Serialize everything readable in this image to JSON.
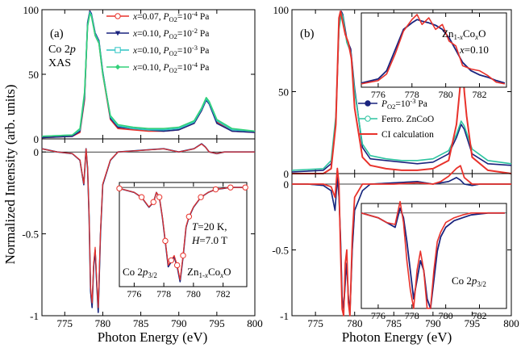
{
  "figure": {
    "ylabel": "Normalized Intensity (arb. units)",
    "xlabel": "Photon Energy (eV)"
  },
  "chart_data": [
    {
      "panel": "a",
      "type": "line",
      "label": "(a)",
      "annotation": [
        "Co 2p",
        "XAS"
      ],
      "x_ticks": [
        775,
        780,
        785,
        790,
        795,
        800
      ],
      "xlim": [
        772,
        800
      ],
      "xas": {
        "ylim": [
          0,
          100
        ],
        "y_ticks": [
          0,
          50,
          100
        ],
        "series": [
          {
            "name": "x=0.07, PO2=10^-4 Pa",
            "legend": [
              "x",
              "=0.07, ",
              "P",
              "O2",
              "=10",
              "-4",
              " Pa"
            ],
            "color": "#e8322b",
            "marker": "open-circle",
            "x": [
              772,
              776,
              777,
              777.6,
              778.0,
              778.3,
              778.5,
              779.0,
              779.5,
              780,
              781,
              782,
              784,
              786,
              788,
              790,
              792,
              793,
              793.6,
              794,
              795,
              797,
              800
            ],
            "y": [
              1,
              2,
              5,
              30,
              88,
              99,
              96,
              80,
              74,
              50,
              15,
              8,
              7,
              6,
              6,
              7,
              12,
              22,
              31,
              28,
              13,
              6,
              5
            ]
          },
          {
            "name": "x=0.10, PO2=10^-2 Pa",
            "legend": [
              "x",
              "=0.10, ",
              "P",
              "O2",
              "=10",
              "-2",
              " Pa"
            ],
            "color": "#1a237e",
            "marker": "filled-triangle-down",
            "x": [
              772,
              776,
              777,
              777.6,
              778.0,
              778.3,
              778.5,
              779.0,
              779.5,
              780,
              781,
              782,
              784,
              786,
              788,
              790,
              792,
              793,
              793.6,
              794,
              795,
              797,
              800
            ],
            "y": [
              1,
              2,
              6,
              32,
              90,
              99,
              97,
              82,
              76,
              52,
              16,
              9,
              8,
              7,
              6,
              7,
              12,
              22,
              30,
              27,
              12,
              6,
              5
            ]
          },
          {
            "name": "x=0.10, PO2=10^-3 Pa",
            "legend": [
              "x",
              "=0.10, ",
              "P",
              "O2",
              "=10",
              "-3",
              " Pa"
            ],
            "color": "#2ec4c4",
            "marker": "open-square",
            "x": [
              772,
              776,
              777,
              777.6,
              778.0,
              778.3,
              778.5,
              779.0,
              779.5,
              780,
              781,
              782,
              784,
              786,
              788,
              790,
              792,
              793,
              793.6,
              794,
              795,
              797,
              800
            ],
            "y": [
              2,
              3,
              7,
              34,
              88,
              98,
              96,
              81,
              75,
              51,
              17,
              10,
              8,
              7,
              7,
              8,
              13,
              23,
              31,
              28,
              14,
              7,
              6
            ]
          },
          {
            "name": "x=0.10, PO2=10^-4 Pa",
            "legend": [
              "x",
              "=0.10, ",
              "P",
              "O2",
              "=10",
              "-4",
              " Pa"
            ],
            "color": "#33d17a",
            "marker": "filled-diamond",
            "x": [
              772,
              776,
              777,
              777.6,
              778.0,
              778.3,
              778.5,
              779.0,
              779.5,
              780,
              781,
              782,
              784,
              786,
              788,
              790,
              792,
              793,
              793.6,
              794,
              795,
              797,
              800
            ],
            "y": [
              2,
              3,
              8,
              36,
              87,
              97,
              95,
              80,
              74,
              50,
              18,
              11,
              9,
              8,
              8,
              9,
              14,
              24,
              32,
              29,
              15,
              8,
              6
            ]
          }
        ]
      },
      "xmcd": {
        "ylim": [
          -1.0,
          0.08
        ],
        "y_ticks": [
          0,
          -0.5,
          -1.0
        ],
        "x": [
          772,
          774,
          776,
          777,
          777.5,
          777.8,
          778.0,
          778.2,
          778.4,
          778.6,
          778.8,
          779.0,
          779.2,
          779.4,
          779.7,
          780,
          781,
          782,
          785,
          788,
          790,
          791,
          792,
          793,
          793.5,
          794,
          795,
          796,
          798,
          800
        ],
        "y": [
          0.02,
          0.0,
          -0.01,
          -0.05,
          -0.2,
          0.02,
          -0.1,
          -0.4,
          -0.85,
          -0.95,
          -0.7,
          -0.6,
          -0.8,
          -0.98,
          -0.5,
          -0.2,
          -0.05,
          0,
          0.01,
          0.02,
          0.0,
          0.01,
          0.02,
          0.05,
          0.03,
          0.0,
          -0.01,
          0.0,
          0.0,
          0.0
        ],
        "inset": {
          "xlim": [
            775,
            783.6
          ],
          "x_ticks": [
            776,
            778,
            780,
            782
          ],
          "ylim": [
            -1.0,
            0.05
          ],
          "texts": [
            "T=20 K,",
            "H=7.0 T",
            "Co 2p3/2",
            "Zn1-xCoxO"
          ],
          "x": [
            775,
            776,
            776.5,
            777,
            777.3,
            777.5,
            777.7,
            777.9,
            778.1,
            778.3,
            778.5,
            778.7,
            778.9,
            779.1,
            779.3,
            779.5,
            779.7,
            780,
            780.5,
            781,
            781.5,
            782,
            782.5,
            783,
            783.5
          ],
          "y": [
            -0.01,
            -0.05,
            -0.1,
            -0.2,
            -0.15,
            -0.05,
            -0.1,
            -0.3,
            -0.55,
            -0.8,
            -0.75,
            -0.7,
            -0.8,
            -0.95,
            -0.7,
            -0.4,
            -0.3,
            -0.2,
            -0.1,
            -0.05,
            -0.02,
            -0.01,
            0,
            0,
            0
          ]
        }
      }
    },
    {
      "panel": "b",
      "type": "line",
      "label": "(b)",
      "x_ticks": [
        775,
        780,
        785,
        790,
        795,
        800
      ],
      "xlim": [
        772,
        800
      ],
      "xas": {
        "ylim": [
          0,
          100
        ],
        "y_ticks": [
          0,
          50,
          100
        ],
        "series": [
          {
            "name": "PO2=10^-3 Pa",
            "legend": [
              "P",
              "O2",
              "=10",
              "-3",
              " Pa"
            ],
            "color": "#1a237e",
            "marker": "filled-circle",
            "x": [
              772,
              776,
              777,
              777.6,
              778.0,
              778.3,
              778.5,
              779.0,
              779.5,
              780,
              781,
              782,
              784,
              786,
              788,
              790,
              792,
              793,
              793.6,
              794,
              795,
              797,
              800
            ],
            "y": [
              1,
              2,
              6,
              32,
              90,
              99,
              97,
              82,
              76,
              52,
              16,
              9,
              8,
              7,
              6,
              7,
              12,
              22,
              30,
              27,
              12,
              6,
              5
            ]
          },
          {
            "name": "Ferro. ZnCoO",
            "legend": [
              "Ferro. ZnCoO"
            ],
            "color": "#2ec4a0",
            "marker": "open-circle",
            "x": [
              772,
              776,
              777,
              777.6,
              778.0,
              778.3,
              778.5,
              779.0,
              779.5,
              780,
              781,
              782,
              784,
              786,
              788,
              790,
              792,
              793,
              793.6,
              794,
              795,
              797,
              800
            ],
            "y": [
              2,
              3,
              8,
              35,
              88,
              98,
              96,
              80,
              74,
              50,
              18,
              11,
              9,
              8,
              8,
              9,
              14,
              24,
              32,
              29,
              15,
              8,
              6
            ]
          },
          {
            "name": "CI calculation",
            "legend": [
              "CI calculation"
            ],
            "color": "#e8322b",
            "marker": "line",
            "x": [
              772,
              776,
              777,
              777.6,
              778.0,
              778.2,
              778.5,
              778.8,
              779.2,
              779.6,
              780,
              781,
              782,
              784,
              786,
              788,
              790,
              792,
              793,
              793.5,
              793.8,
              794,
              794.3,
              795,
              797,
              800
            ],
            "y": [
              0,
              0,
              3,
              30,
              95,
              99,
              92,
              85,
              80,
              70,
              40,
              10,
              5,
              3,
              2,
              2,
              3,
              8,
              30,
              55,
              65,
              50,
              35,
              10,
              2,
              0
            ]
          }
        ],
        "inset": {
          "xlim": [
            775,
            783.6
          ],
          "x_ticks": [
            776,
            778,
            780,
            782
          ],
          "texts": [
            "Zn1-xCoxO",
            "x=0.10"
          ],
          "x": [
            775,
            776,
            776.5,
            777,
            777.5,
            778,
            778.3,
            778.6,
            779,
            779.4,
            779.8,
            780.2,
            780.6,
            781,
            781.5,
            782,
            782.5,
            783,
            783.5
          ],
          "y": [
            15,
            20,
            30,
            55,
            80,
            88,
            92,
            90,
            88,
            85,
            80,
            70,
            55,
            40,
            30,
            25,
            22,
            18,
            15
          ],
          "x_ci": [
            775,
            776,
            776.5,
            777,
            777.5,
            778,
            778.3,
            778.6,
            779,
            779.4,
            779.8,
            780.2,
            780.6,
            781,
            781.5,
            782,
            782.5,
            783,
            783.5
          ],
          "y_ci": [
            14,
            18,
            26,
            50,
            78,
            92,
            98,
            86,
            94,
            80,
            86,
            66,
            60,
            36,
            32,
            30,
            24,
            16,
            14
          ]
        }
      },
      "xmcd": {
        "ylim": [
          -1.0,
          0.08
        ],
        "y_ticks": [
          0,
          -0.5,
          -1.0
        ],
        "x": [
          772,
          774,
          776,
          777,
          777.5,
          777.8,
          778.0,
          778.2,
          778.4,
          778.6,
          778.8,
          779.0,
          779.2,
          779.4,
          779.7,
          780,
          781,
          782,
          785,
          788,
          790,
          791,
          792,
          793,
          793.5,
          794,
          795,
          796,
          798,
          800
        ],
        "y": [
          0.0,
          0.0,
          -0.01,
          -0.05,
          -0.2,
          0.05,
          -0.1,
          -0.4,
          -0.85,
          -0.95,
          -0.75,
          -0.6,
          -0.85,
          -0.98,
          -0.5,
          -0.2,
          -0.05,
          0,
          0.01,
          0.02,
          0.0,
          0.01,
          0.02,
          0.05,
          0.03,
          0.0,
          -0.01,
          0.0,
          0.0,
          0.0
        ],
        "y_ci": [
          0.0,
          0.0,
          0.0,
          -0.02,
          -0.1,
          0.12,
          0.0,
          -0.5,
          -0.95,
          -1.0,
          -0.6,
          -0.5,
          -0.9,
          -1.0,
          -0.4,
          -0.1,
          0.0,
          0.0,
          0.0,
          0.01,
          0.0,
          0.02,
          0.06,
          0.12,
          0.14,
          0.05,
          0.0,
          0.0,
          0.0,
          0.0
        ],
        "inset": {
          "xlim": [
            775,
            783.6
          ],
          "x_ticks": [
            776,
            778,
            780,
            782
          ],
          "texts": [
            "Co 2p3/2"
          ],
          "x": [
            775,
            776,
            776.5,
            777,
            777.3,
            777.5,
            777.7,
            777.9,
            778.1,
            778.3,
            778.5,
            778.7,
            778.9,
            779.1,
            779.3,
            779.5,
            779.7,
            780,
            780.5,
            781,
            781.5,
            782,
            782.5,
            783,
            783.5
          ],
          "y": [
            0.0,
            -0.05,
            -0.1,
            -0.15,
            0.05,
            -0.05,
            -0.3,
            -0.6,
            -0.9,
            -0.7,
            -0.5,
            -0.6,
            -0.9,
            -1.0,
            -0.7,
            -0.4,
            -0.25,
            -0.15,
            -0.08,
            -0.05,
            -0.02,
            -0.01,
            0,
            0,
            0
          ],
          "y_ci": [
            0.0,
            -0.05,
            -0.1,
            -0.12,
            0.12,
            -0.1,
            -0.5,
            -0.8,
            -1.0,
            -0.6,
            -0.4,
            -0.6,
            -1.0,
            -1.0,
            -0.6,
            -0.3,
            -0.2,
            -0.1,
            -0.05,
            -0.02,
            0,
            0,
            0,
            0,
            0
          ]
        }
      }
    }
  ]
}
